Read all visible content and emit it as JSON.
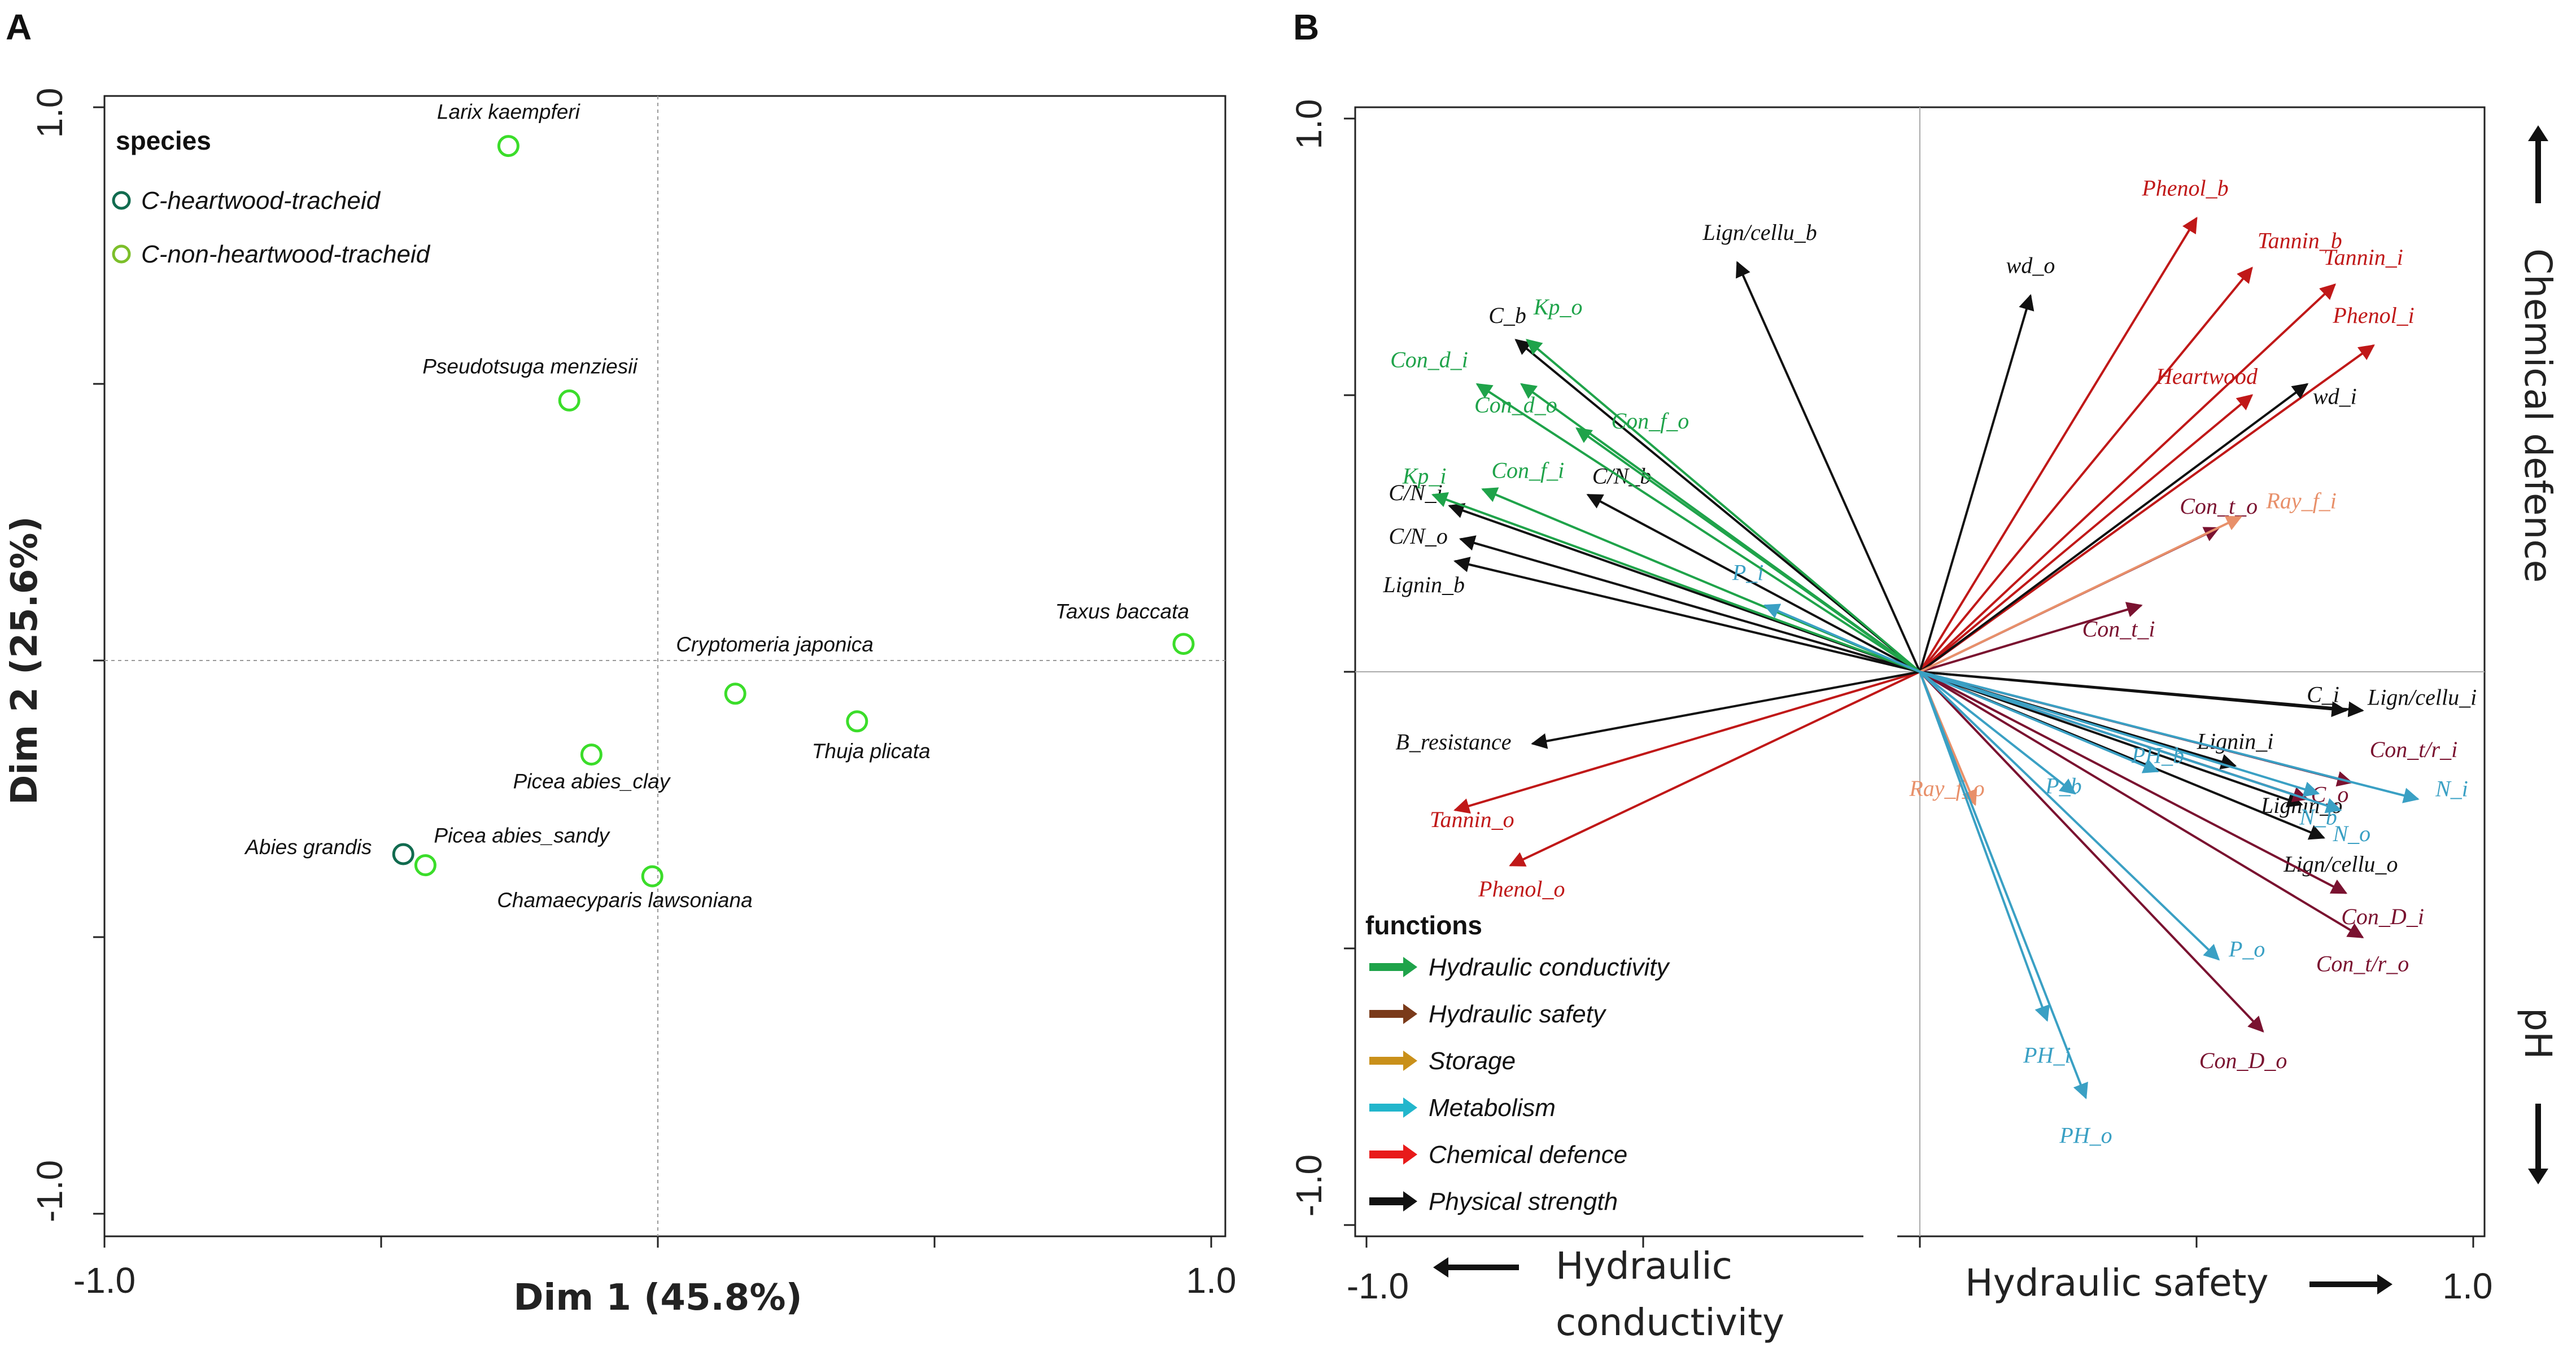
{
  "colors": {
    "conductivity": "#1fa34a",
    "safety": "#7a1230",
    "storage": "#e8906a",
    "metabolism": "#3aa0c4",
    "defence": "#c01818",
    "strength": "#111111",
    "point_dark": "#116b4f",
    "point_light": "#7cbf2a",
    "point_marker": "#3bdd2a"
  },
  "panelA": {
    "letter": "A",
    "chart_data": {
      "type": "scatter",
      "title": "",
      "xlabel": "Dim 1 (45.8%)",
      "ylabel": "Dim 2 (25.6%)",
      "xlim": [
        -1.0,
        1.0
      ],
      "ylim": [
        -1.0,
        1.0
      ],
      "x_tick_labels": [
        "-1.0",
        "1.0"
      ],
      "y_tick_labels": [
        "1.0",
        "-1.0"
      ],
      "legend": {
        "title": "species",
        "position": "top-left",
        "entries": [
          {
            "label": "C-heartwood-tracheid",
            "color": "#116b4f"
          },
          {
            "label": "C-non-heartwood-tracheid",
            "color": "#7cbf2a"
          }
        ]
      },
      "points": [
        {
          "label": "Larix kaempferi",
          "x": -0.27,
          "y": 0.93
        },
        {
          "label": "Pseudotsuga menziesii",
          "x": -0.16,
          "y": 0.47
        },
        {
          "label": "Taxus baccata",
          "x": 0.95,
          "y": 0.03
        },
        {
          "label": "Cryptomeria japonica",
          "x": 0.14,
          "y": -0.06
        },
        {
          "label": "Thuja plicata",
          "x": 0.36,
          "y": -0.11
        },
        {
          "label": "Picea abies_clay",
          "x": -0.12,
          "y": -0.17
        },
        {
          "label": "Abies grandis",
          "x": -0.46,
          "y": -0.35
        },
        {
          "label": "Picea abies_sandy",
          "x": -0.42,
          "y": -0.37
        },
        {
          "label": "Chamaecyparis lawsoniana",
          "x": -0.01,
          "y": -0.39
        }
      ]
    }
  },
  "panelB": {
    "letter": "B",
    "chart_data": {
      "type": "biplot",
      "xlim": [
        -1.0,
        1.0
      ],
      "ylim": [
        -1.0,
        1.0
      ],
      "x_tick_labels": [
        "-1.0",
        "1.0"
      ],
      "y_tick_labels": [
        "1.0",
        "-1.0"
      ],
      "axis_labels": {
        "left": "Hydraulic",
        "left2": "conductivity",
        "right": "Hydraulic safety",
        "top": "Chemical defence",
        "bottom": "pH"
      },
      "legend": {
        "title": "functions",
        "position": "bottom-left",
        "entries": [
          {
            "label": "Hydraulic conductivity",
            "color": "#1fa34a"
          },
          {
            "label": "Hydraulic safety",
            "color": "#7a3a1a"
          },
          {
            "label": "Storage",
            "color": "#c9901a"
          },
          {
            "label": "Metabolism",
            "color": "#22b6cc"
          },
          {
            "label": "Chemical defence",
            "color": "#e81a1a"
          },
          {
            "label": "Physical strength",
            "color": "#111111"
          }
        ]
      },
      "vectors": [
        {
          "label": "Phenol_b",
          "func": "defence",
          "x": 0.5,
          "y": 0.82
        },
        {
          "label": "Tannin_b",
          "func": "defence",
          "x": 0.6,
          "y": 0.73
        },
        {
          "label": "Tannin_i",
          "func": "defence",
          "x": 0.75,
          "y": 0.7
        },
        {
          "label": "Phenol_i",
          "func": "defence",
          "x": 0.82,
          "y": 0.59
        },
        {
          "label": "Heartwood",
          "func": "defence",
          "x": 0.6,
          "y": 0.5
        },
        {
          "label": "Tannin_o",
          "func": "defence",
          "x": -0.84,
          "y": -0.25
        },
        {
          "label": "Phenol_o",
          "func": "defence",
          "x": -0.74,
          "y": -0.35
        },
        {
          "label": "wd_o",
          "func": "strength",
          "x": 0.2,
          "y": 0.68
        },
        {
          "label": "wd_i",
          "func": "strength",
          "x": 0.7,
          "y": 0.52
        },
        {
          "label": "Lign/cellu_b",
          "func": "strength",
          "x": -0.33,
          "y": 0.74
        },
        {
          "label": "C_b",
          "func": "strength",
          "x": -0.73,
          "y": 0.6
        },
        {
          "label": "C/N_b",
          "func": "strength",
          "x": -0.6,
          "y": 0.32
        },
        {
          "label": "C/N_i",
          "func": "strength",
          "x": -0.85,
          "y": 0.3
        },
        {
          "label": "C/N_o",
          "func": "strength",
          "x": -0.83,
          "y": 0.24
        },
        {
          "label": "Lignin_b",
          "func": "strength",
          "x": -0.84,
          "y": 0.2
        },
        {
          "label": "B_resistance",
          "func": "strength",
          "x": -0.7,
          "y": -0.13
        },
        {
          "label": "C_i",
          "func": "strength",
          "x": 0.8,
          "y": -0.07
        },
        {
          "label": "Lign/cellu_i",
          "func": "strength",
          "x": 0.77,
          "y": -0.07
        },
        {
          "label": "Lignin_i",
          "func": "strength",
          "x": 0.57,
          "y": -0.17
        },
        {
          "label": "Lignin_o",
          "func": "strength",
          "x": 0.69,
          "y": -0.24
        },
        {
          "label": "Lign/cellu_o",
          "func": "strength",
          "x": 0.73,
          "y": -0.3
        },
        {
          "label": "Kp_o",
          "func": "conductivity",
          "x": -0.71,
          "y": 0.6
        },
        {
          "label": "Con_d_i",
          "func": "conductivity",
          "x": -0.8,
          "y": 0.52
        },
        {
          "label": "Con_d_o",
          "func": "conductivity",
          "x": -0.72,
          "y": 0.52
        },
        {
          "label": "Con_f_o",
          "func": "conductivity",
          "x": -0.62,
          "y": 0.44
        },
        {
          "label": "Con_f_i",
          "func": "conductivity",
          "x": -0.79,
          "y": 0.33
        },
        {
          "label": "Kp_i",
          "func": "conductivity",
          "x": -0.88,
          "y": 0.32
        },
        {
          "label": "Con_t_o",
          "func": "safety",
          "x": 0.54,
          "y": 0.26
        },
        {
          "label": "Con_t_i",
          "func": "safety",
          "x": 0.4,
          "y": 0.12
        },
        {
          "label": "Con_t/r_i",
          "func": "safety",
          "x": 0.78,
          "y": -0.2
        },
        {
          "label": "C_o",
          "func": "safety",
          "x": 0.7,
          "y": -0.23
        },
        {
          "label": "Con_D_i",
          "func": "safety",
          "x": 0.77,
          "y": -0.4
        },
        {
          "label": "Con_t/r_o",
          "func": "safety",
          "x": 0.8,
          "y": -0.48
        },
        {
          "label": "Con_D_o",
          "func": "safety",
          "x": 0.62,
          "y": -0.65
        },
        {
          "label": "Ray_f_i",
          "func": "storage",
          "x": 0.58,
          "y": 0.28
        },
        {
          "label": "Ray_f_o",
          "func": "storage",
          "x": 0.1,
          "y": -0.24
        },
        {
          "label": "P_i",
          "func": "metabolism",
          "x": -0.28,
          "y": 0.12
        },
        {
          "label": "P_b",
          "func": "metabolism",
          "x": 0.28,
          "y": -0.22
        },
        {
          "label": "PH_b",
          "func": "metabolism",
          "x": 0.43,
          "y": -0.18
        },
        {
          "label": "N_b",
          "func": "metabolism",
          "x": 0.72,
          "y": -0.22
        },
        {
          "label": "N_o",
          "func": "metabolism",
          "x": 0.76,
          "y": -0.25
        },
        {
          "label": "N_i",
          "func": "metabolism",
          "x": 0.9,
          "y": -0.23
        },
        {
          "label": "P_o",
          "func": "metabolism",
          "x": 0.54,
          "y": -0.52
        },
        {
          "label": "PH_i",
          "func": "metabolism",
          "x": 0.23,
          "y": -0.63
        },
        {
          "label": "PH_o",
          "func": "metabolism",
          "x": 0.3,
          "y": -0.77
        }
      ]
    }
  }
}
